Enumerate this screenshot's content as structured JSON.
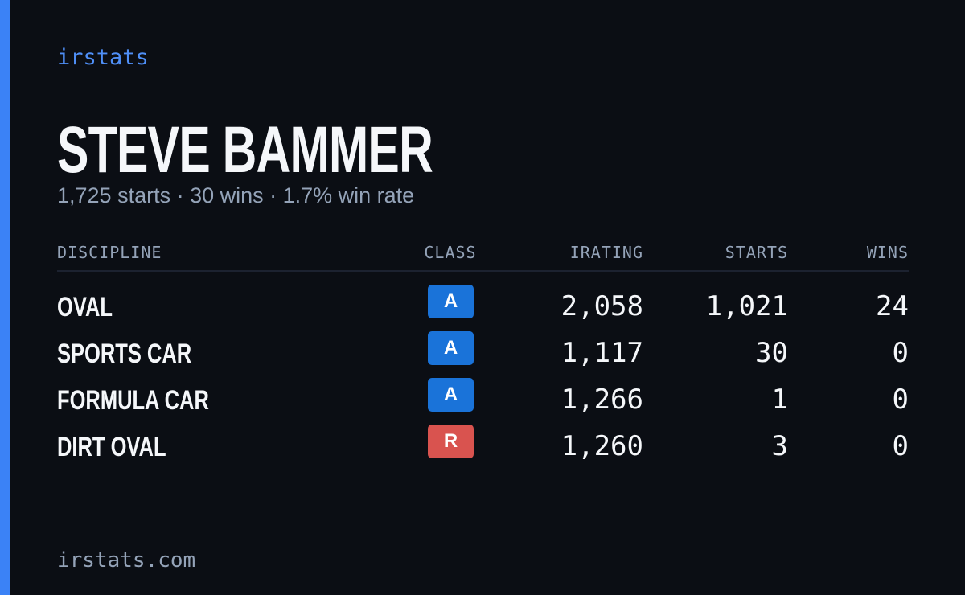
{
  "brand": "irstats",
  "driver": {
    "name": "STEVE BAMMER",
    "summary": "1,725 starts · 30 wins · 1.7% win rate"
  },
  "table": {
    "headers": [
      "DISCIPLINE",
      "CLASS",
      "IRATING",
      "STARTS",
      "WINS"
    ],
    "rows": [
      {
        "discipline": "OVAL",
        "class": "A",
        "class_color": "#1a73d9",
        "irating": "2,058",
        "starts": "1,021",
        "wins": "24"
      },
      {
        "discipline": "SPORTS CAR",
        "class": "A",
        "class_color": "#1a73d9",
        "irating": "1,117",
        "starts": "30",
        "wins": "0"
      },
      {
        "discipline": "FORMULA CAR",
        "class": "A",
        "class_color": "#1a73d9",
        "irating": "1,266",
        "starts": "1",
        "wins": "0"
      },
      {
        "discipline": "DIRT OVAL",
        "class": "R",
        "class_color": "#d9534f",
        "irating": "1,260",
        "starts": "3",
        "wins": "0"
      }
    ]
  },
  "footer": "irstats.com"
}
